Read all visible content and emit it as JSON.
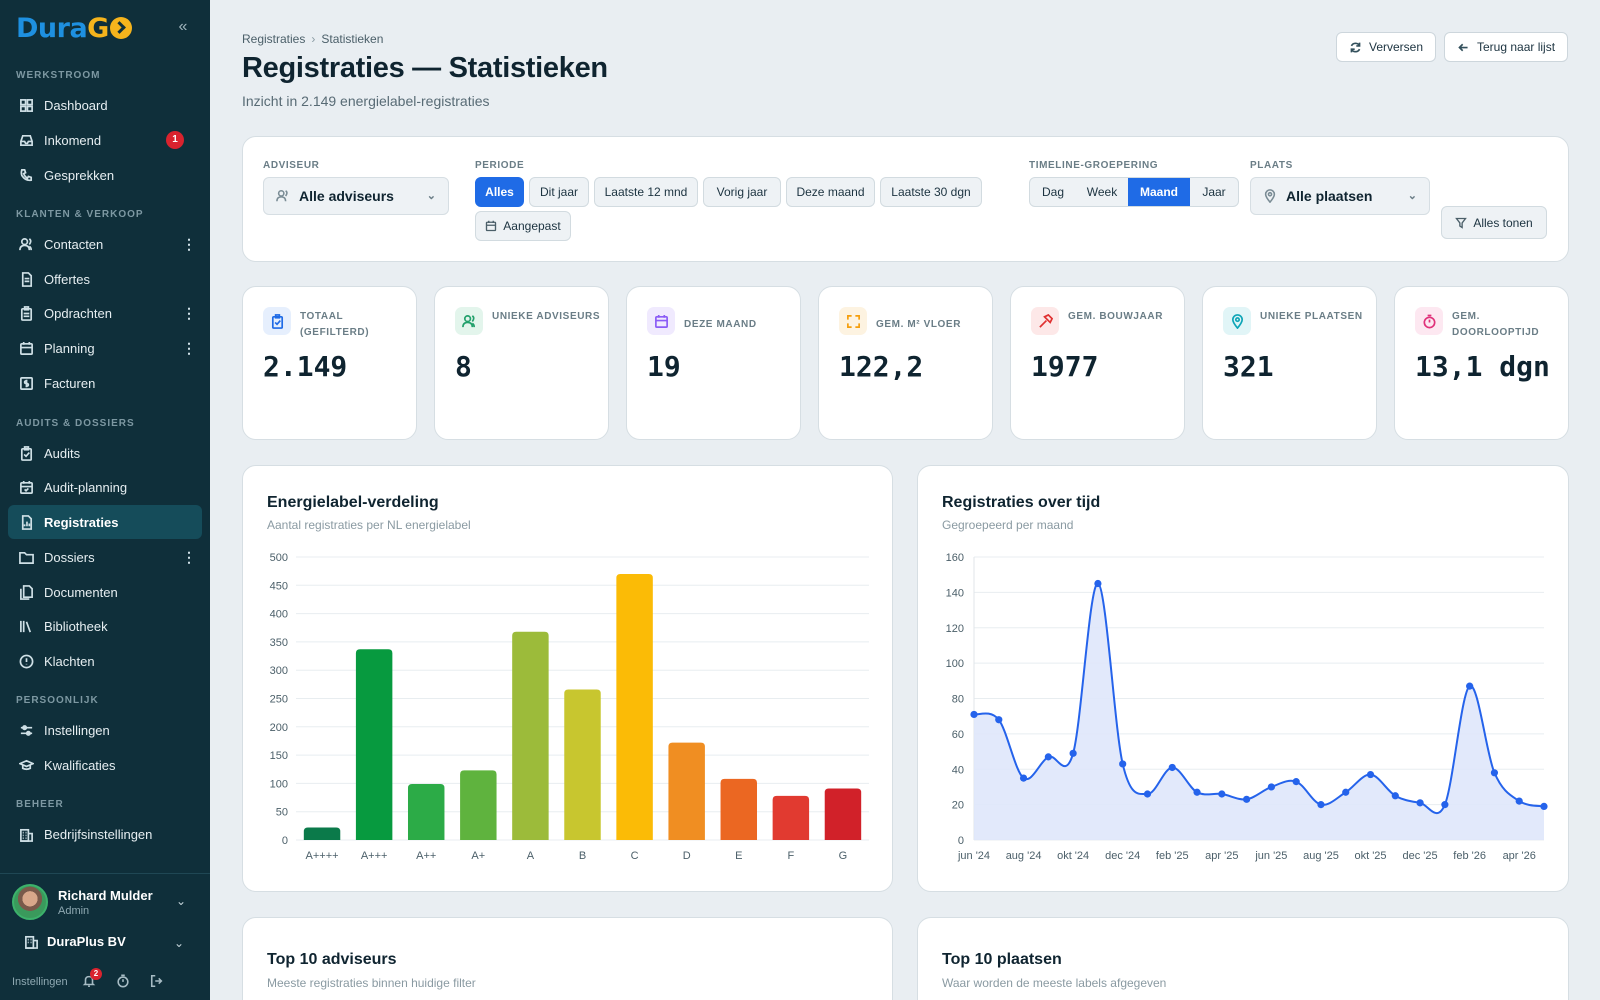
{
  "sidebar": {
    "logo": {
      "part1": "Dura",
      "part2": "G"
    },
    "sections": {
      "werkstroom": "WERKSTROOM",
      "klanten": "KLANTEN & VERKOOP",
      "audits": "AUDITS & DOSSIERS",
      "persoonlijk": "PERSOONLIJK",
      "beheer": "BEHEER"
    },
    "items": {
      "dashboard": "Dashboard",
      "inkomend": "Inkomend",
      "inkomend_badge": "1",
      "gesprekken": "Gesprekken",
      "contacten": "Contacten",
      "offertes": "Offertes",
      "opdrachten": "Opdrachten",
      "planning": "Planning",
      "facturen": "Facturen",
      "audits": "Audits",
      "audit_planning": "Audit-planning",
      "registraties": "Registraties",
      "dossiers": "Dossiers",
      "documenten": "Documenten",
      "bibliotheek": "Bibliotheek",
      "klachten": "Klachten",
      "instellingen": "Instellingen",
      "kwalificaties": "Kwalificaties",
      "bedrijfsinstellingen": "Bedrijfsinstellingen"
    },
    "user": {
      "name": "Richard Mulder",
      "role": "Admin"
    },
    "org": "DuraPlus BV",
    "footer": {
      "settings": "Instellingen",
      "notif_badge": "2"
    }
  },
  "header": {
    "breadcrumb": [
      "Registraties",
      "Statistieken"
    ],
    "title": "Registraties — Statistieken",
    "subtitle": "Inzicht in 2.149 energielabel-registraties",
    "refresh_label": "Verversen",
    "back_label": "Terug naar lijst"
  },
  "filters": {
    "adviseur_label": "ADVISEUR",
    "adviseur_value": "Alle adviseurs",
    "periode_label": "PERIODE",
    "periode_options": [
      "Alles",
      "Dit jaar",
      "Laatste 12 mnd",
      "Vorig jaar",
      "Deze maand",
      "Laatste 30 dgn",
      "Aangepast"
    ],
    "periode_selected": "Alles",
    "timeline_label": "TIMELINE-GROEPERING",
    "timeline_options": [
      "Dag",
      "Week",
      "Maand",
      "Jaar"
    ],
    "timeline_selected": "Maand",
    "plaats_label": "PLAATS",
    "plaats_value": "Alle plaatsen",
    "show_all_label": "Alles tonen"
  },
  "kpis": [
    {
      "label": "TOTAAL (GEFILTERD)",
      "value": "2.149",
      "icon": "clipboard-check-icon",
      "color": "#1f6be6",
      "bg": "#e6effd"
    },
    {
      "label": "UNIEKE ADVISEURS",
      "value": "8",
      "icon": "users-icon",
      "color": "#22a06b",
      "bg": "#e3f5ec"
    },
    {
      "label": "DEZE MAAND",
      "value": "19",
      "icon": "calendar-icon",
      "color": "#8b5cf6",
      "bg": "#f0eafe"
    },
    {
      "label": "GEM. M² VLOER",
      "value": "122,2",
      "icon": "expand-icon",
      "color": "#f59e0b",
      "bg": "#fdf3e1"
    },
    {
      "label": "GEM. BOUWJAAR",
      "value": "1977",
      "icon": "hammer-icon",
      "color": "#e03131",
      "bg": "#fde8e8"
    },
    {
      "label": "UNIEKE PLAATSEN",
      "value": "321",
      "icon": "map-pin-icon",
      "color": "#0ea5b7",
      "bg": "#e1f5f7"
    },
    {
      "label": "GEM. DOORLOOPTIJD",
      "value": "13,1 dgn",
      "icon": "timer-icon",
      "color": "#e0317a",
      "bg": "#fde8f1"
    }
  ],
  "charts": {
    "labels": {
      "title": "Energielabel-verdeling",
      "subtitle": "Aantal registraties per NL energielabel"
    },
    "timeline": {
      "title": "Registraties over tijd",
      "subtitle": "Gegroepeerd per maand"
    },
    "top_advisors": {
      "title": "Top 10 adviseurs",
      "subtitle": "Meeste registraties binnen huidige filter"
    },
    "top_places": {
      "title": "Top 10 plaatsen",
      "subtitle": "Waar worden de meeste labels afgegeven"
    }
  },
  "chart_data": [
    {
      "type": "bar",
      "title": "Energielabel-verdeling",
      "categories": [
        "A++++",
        "A+++",
        "A++",
        "A+",
        "A",
        "B",
        "C",
        "D",
        "E",
        "F",
        "G"
      ],
      "values": [
        22,
        337,
        99,
        123,
        368,
        266,
        470,
        172,
        108,
        78,
        91
      ],
      "colors": [
        "#0b7a4a",
        "#079a3f",
        "#2cab47",
        "#5fb33e",
        "#9cbb3a",
        "#c8c62f",
        "#fbbb06",
        "#f08e22",
        "#eb6722",
        "#e13a30",
        "#d12129"
      ],
      "ylim": [
        0,
        500
      ],
      "yticks": [
        0,
        50,
        100,
        150,
        200,
        250,
        300,
        350,
        400,
        450,
        500
      ],
      "grid": true
    },
    {
      "type": "line",
      "title": "Registraties over tijd",
      "x": [
        "jun '24",
        "jul '24",
        "aug '24",
        "sep '24",
        "okt '24",
        "nov '24",
        "dec '24",
        "jan '25",
        "feb '25",
        "mrt '25",
        "apr '25",
        "mei '25",
        "jun '25",
        "jul '25",
        "aug '25",
        "sep '25",
        "okt '25",
        "nov '25",
        "dec '25",
        "jan '26",
        "feb '26",
        "mrt '26",
        "apr '26",
        "mei '26"
      ],
      "xticks": [
        "jun '24",
        "aug '24",
        "okt '24",
        "dec '24",
        "feb '25",
        "apr '25",
        "jun '25",
        "aug '25",
        "okt '25",
        "dec '25",
        "feb '26",
        "apr '26"
      ],
      "y": [
        71,
        68,
        35,
        47,
        49,
        145,
        43,
        26,
        41,
        27,
        26,
        23,
        30,
        33,
        20,
        27,
        37,
        25,
        21,
        20,
        87,
        38,
        22,
        19
      ],
      "ylim": [
        0,
        160
      ],
      "yticks": [
        0,
        20,
        40,
        60,
        80,
        100,
        120,
        140,
        160
      ],
      "line_color": "#2563eb",
      "fill_color": "#dfe7fb",
      "grid": true
    }
  ]
}
